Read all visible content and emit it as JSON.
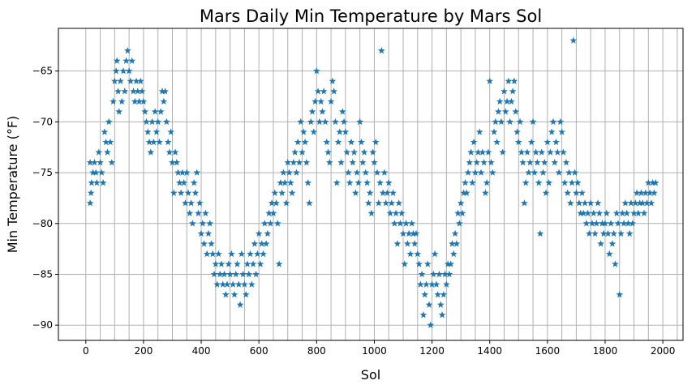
{
  "chart_data": {
    "type": "scatter",
    "title": "Mars Daily Min Temperature by Mars Sol",
    "xlabel": "Sol",
    "ylabel": "Min Temperature (°F)",
    "xlim": [
      -95,
      2070
    ],
    "ylim": [
      -91.5,
      -60.8
    ],
    "xticks": [
      0,
      200,
      400,
      600,
      800,
      1000,
      1200,
      1400,
      1600,
      1800,
      2000
    ],
    "yticks": [
      -90,
      -85,
      -80,
      -75,
      -70,
      -65
    ],
    "minor_x_gridlines_every": 50,
    "grid": true,
    "marker": "star",
    "color": "#1f77b4",
    "points": [
      [
        15,
        -74
      ],
      [
        20,
        -76
      ],
      [
        25,
        -75
      ],
      [
        15,
        -78
      ],
      [
        18,
        -77
      ],
      [
        30,
        -74
      ],
      [
        35,
        -75
      ],
      [
        38,
        -76
      ],
      [
        45,
        -73
      ],
      [
        50,
        -74
      ],
      [
        55,
        -75
      ],
      [
        60,
        -76
      ],
      [
        65,
        -71
      ],
      [
        70,
        -72
      ],
      [
        75,
        -73
      ],
      [
        80,
        -70
      ],
      [
        85,
        -72
      ],
      [
        90,
        -74
      ],
      [
        95,
        -68
      ],
      [
        100,
        -66
      ],
      [
        105,
        -65
      ],
      [
        108,
        -64
      ],
      [
        112,
        -67
      ],
      [
        115,
        -69
      ],
      [
        120,
        -66
      ],
      [
        125,
        -68
      ],
      [
        130,
        -65
      ],
      [
        135,
        -67
      ],
      [
        140,
        -64
      ],
      [
        145,
        -63
      ],
      [
        150,
        -65
      ],
      [
        155,
        -66
      ],
      [
        160,
        -64
      ],
      [
        165,
        -67
      ],
      [
        170,
        -68
      ],
      [
        175,
        -66
      ],
      [
        180,
        -67
      ],
      [
        185,
        -68
      ],
      [
        190,
        -66
      ],
      [
        195,
        -67
      ],
      [
        200,
        -68
      ],
      [
        205,
        -69
      ],
      [
        210,
        -70
      ],
      [
        215,
        -71
      ],
      [
        220,
        -72
      ],
      [
        225,
        -73
      ],
      [
        230,
        -70
      ],
      [
        235,
        -72
      ],
      [
        240,
        -69
      ],
      [
        245,
        -71
      ],
      [
        250,
        -70
      ],
      [
        255,
        -72
      ],
      [
        260,
        -69
      ],
      [
        265,
        -67
      ],
      [
        270,
        -68
      ],
      [
        275,
        -67
      ],
      [
        280,
        -70
      ],
      [
        285,
        -72
      ],
      [
        290,
        -73
      ],
      [
        295,
        -71
      ],
      [
        300,
        -74
      ],
      [
        305,
        -77
      ],
      [
        310,
        -73
      ],
      [
        315,
        -74
      ],
      [
        320,
        -75
      ],
      [
        325,
        -76
      ],
      [
        330,
        -77
      ],
      [
        335,
        -75
      ],
      [
        340,
        -76
      ],
      [
        345,
        -78
      ],
      [
        350,
        -75
      ],
      [
        355,
        -77
      ],
      [
        360,
        -79
      ],
      [
        365,
        -78
      ],
      [
        370,
        -80
      ],
      [
        375,
        -76
      ],
      [
        380,
        -77
      ],
      [
        385,
        -75
      ],
      [
        390,
        -79
      ],
      [
        395,
        -78
      ],
      [
        400,
        -81
      ],
      [
        405,
        -80
      ],
      [
        410,
        -82
      ],
      [
        415,
        -79
      ],
      [
        420,
        -83
      ],
      [
        425,
        -81
      ],
      [
        430,
        -80
      ],
      [
        435,
        -82
      ],
      [
        440,
        -83
      ],
      [
        445,
        -85
      ],
      [
        450,
        -84
      ],
      [
        455,
        -86
      ],
      [
        460,
        -83
      ],
      [
        465,
        -85
      ],
      [
        470,
        -84
      ],
      [
        475,
        -86
      ],
      [
        480,
        -85
      ],
      [
        485,
        -87
      ],
      [
        490,
        -86
      ],
      [
        495,
        -84
      ],
      [
        500,
        -85
      ],
      [
        505,
        -83
      ],
      [
        510,
        -86
      ],
      [
        515,
        -87
      ],
      [
        520,
        -85
      ],
      [
        525,
        -84
      ],
      [
        530,
        -86
      ],
      [
        535,
        -88
      ],
      [
        540,
        -83
      ],
      [
        545,
        -85
      ],
      [
        550,
        -86
      ],
      [
        555,
        -87
      ],
      [
        560,
        -84
      ],
      [
        565,
        -85
      ],
      [
        570,
        -83
      ],
      [
        575,
        -86
      ],
      [
        580,
        -84
      ],
      [
        585,
        -82
      ],
      [
        590,
        -85
      ],
      [
        595,
        -83
      ],
      [
        600,
        -81
      ],
      [
        605,
        -84
      ],
      [
        610,
        -82
      ],
      [
        615,
        -83
      ],
      [
        620,
        -80
      ],
      [
        625,
        -82
      ],
      [
        630,
        -81
      ],
      [
        635,
        -79
      ],
      [
        640,
        -80
      ],
      [
        645,
        -78
      ],
      [
        650,
        -79
      ],
      [
        655,
        -77
      ],
      [
        660,
        -78
      ],
      [
        665,
        -80
      ],
      [
        670,
        -84
      ],
      [
        675,
        -76
      ],
      [
        680,
        -77
      ],
      [
        685,
        -75
      ],
      [
        690,
        -76
      ],
      [
        695,
        -78
      ],
      [
        700,
        -74
      ],
      [
        705,
        -75
      ],
      [
        710,
        -76
      ],
      [
        715,
        -77
      ],
      [
        720,
        -74
      ],
      [
        725,
        -73
      ],
      [
        730,
        -75
      ],
      [
        735,
        -72
      ],
      [
        740,
        -74
      ],
      [
        745,
        -70
      ],
      [
        750,
        -73
      ],
      [
        755,
        -71
      ],
      [
        760,
        -72
      ],
      [
        765,
        -74
      ],
      [
        770,
        -76
      ],
      [
        775,
        -78
      ],
      [
        780,
        -70
      ],
      [
        785,
        -69
      ],
      [
        790,
        -71
      ],
      [
        795,
        -68
      ],
      [
        800,
        -65
      ],
      [
        805,
        -67
      ],
      [
        810,
        -70
      ],
      [
        815,
        -68
      ],
      [
        820,
        -69
      ],
      [
        825,
        -67
      ],
      [
        830,
        -70
      ],
      [
        835,
        -72
      ],
      [
        840,
        -73
      ],
      [
        845,
        -74
      ],
      [
        850,
        -68
      ],
      [
        855,
        -66
      ],
      [
        860,
        -67
      ],
      [
        865,
        -70
      ],
      [
        870,
        -76
      ],
      [
        875,
        -72
      ],
      [
        880,
        -71
      ],
      [
        885,
        -74
      ],
      [
        890,
        -69
      ],
      [
        895,
        -70
      ],
      [
        900,
        -71
      ],
      [
        905,
        -73
      ],
      [
        910,
        -75
      ],
      [
        915,
        -76
      ],
      [
        920,
        -72
      ],
      [
        925,
        -74
      ],
      [
        930,
        -73
      ],
      [
        935,
        -77
      ],
      [
        940,
        -75
      ],
      [
        945,
        -76
      ],
      [
        950,
        -70
      ],
      [
        955,
        -72
      ],
      [
        960,
        -74
      ],
      [
        965,
        -73
      ],
      [
        970,
        -75
      ],
      [
        975,
        -76
      ],
      [
        980,
        -78
      ],
      [
        985,
        -77
      ],
      [
        990,
        -79
      ],
      [
        995,
        -73
      ],
      [
        1000,
        -74
      ],
      [
        1005,
        -72
      ],
      [
        1010,
        -75
      ],
      [
        1015,
        -78
      ],
      [
        1020,
        -76
      ],
      [
        1025,
        -63
      ],
      [
        1030,
        -77
      ],
      [
        1035,
        -75
      ],
      [
        1040,
        -78
      ],
      [
        1045,
        -77
      ],
      [
        1050,
        -76
      ],
      [
        1055,
        -79
      ],
      [
        1060,
        -78
      ],
      [
        1065,
        -77
      ],
      [
        1070,
        -80
      ],
      [
        1075,
        -79
      ],
      [
        1080,
        -82
      ],
      [
        1085,
        -78
      ],
      [
        1090,
        -80
      ],
      [
        1095,
        -79
      ],
      [
        1100,
        -81
      ],
      [
        1105,
        -84
      ],
      [
        1110,
        -80
      ],
      [
        1115,
        -82
      ],
      [
        1120,
        -81
      ],
      [
        1125,
        -83
      ],
      [
        1130,
        -80
      ],
      [
        1135,
        -81
      ],
      [
        1140,
        -82
      ],
      [
        1145,
        -81
      ],
      [
        1150,
        -83
      ],
      [
        1155,
        -84
      ],
      [
        1160,
        -86
      ],
      [
        1165,
        -85
      ],
      [
        1170,
        -89
      ],
      [
        1175,
        -87
      ],
      [
        1180,
        -86
      ],
      [
        1185,
        -84
      ],
      [
        1190,
        -88
      ],
      [
        1195,
        -90
      ],
      [
        1200,
        -86
      ],
      [
        1205,
        -85
      ],
      [
        1210,
        -83
      ],
      [
        1215,
        -86
      ],
      [
        1220,
        -87
      ],
      [
        1225,
        -85
      ],
      [
        1230,
        -88
      ],
      [
        1235,
        -89
      ],
      [
        1240,
        -87
      ],
      [
        1245,
        -85
      ],
      [
        1250,
        -86
      ],
      [
        1255,
        -84
      ],
      [
        1260,
        -85
      ],
      [
        1265,
        -84
      ],
      [
        1270,
        -82
      ],
      [
        1275,
        -83
      ],
      [
        1280,
        -81
      ],
      [
        1285,
        -82
      ],
      [
        1290,
        -79
      ],
      [
        1295,
        -80
      ],
      [
        1300,
        -78
      ],
      [
        1305,
        -79
      ],
      [
        1310,
        -77
      ],
      [
        1315,
        -76
      ],
      [
        1320,
        -77
      ],
      [
        1325,
        -75
      ],
      [
        1330,
        -74
      ],
      [
        1335,
        -73
      ],
      [
        1340,
        -76
      ],
      [
        1345,
        -72
      ],
      [
        1350,
        -75
      ],
      [
        1355,
        -74
      ],
      [
        1360,
        -73
      ],
      [
        1365,
        -71
      ],
      [
        1370,
        -75
      ],
      [
        1375,
        -73
      ],
      [
        1380,
        -74
      ],
      [
        1385,
        -77
      ],
      [
        1390,
        -76
      ],
      [
        1395,
        -73
      ],
      [
        1400,
        -66
      ],
      [
        1405,
        -74
      ],
      [
        1410,
        -75
      ],
      [
        1415,
        -71
      ],
      [
        1420,
        -70
      ],
      [
        1425,
        -72
      ],
      [
        1430,
        -69
      ],
      [
        1435,
        -68
      ],
      [
        1440,
        -70
      ],
      [
        1445,
        -73
      ],
      [
        1450,
        -67
      ],
      [
        1455,
        -69
      ],
      [
        1460,
        -68
      ],
      [
        1465,
        -66
      ],
      [
        1470,
        -70
      ],
      [
        1475,
        -68
      ],
      [
        1480,
        -67
      ],
      [
        1485,
        -66
      ],
      [
        1490,
        -69
      ],
      [
        1495,
        -71
      ],
      [
        1500,
        -72
      ],
      [
        1505,
        -70
      ],
      [
        1510,
        -73
      ],
      [
        1515,
        -74
      ],
      [
        1520,
        -78
      ],
      [
        1525,
        -76
      ],
      [
        1530,
        -73
      ],
      [
        1535,
        -75
      ],
      [
        1540,
        -74
      ],
      [
        1545,
        -72
      ],
      [
        1550,
        -70
      ],
      [
        1555,
        -75
      ],
      [
        1560,
        -73
      ],
      [
        1565,
        -74
      ],
      [
        1570,
        -76
      ],
      [
        1575,
        -81
      ],
      [
        1580,
        -73
      ],
      [
        1585,
        -75
      ],
      [
        1590,
        -74
      ],
      [
        1595,
        -77
      ],
      [
        1600,
        -72
      ],
      [
        1605,
        -76
      ],
      [
        1610,
        -73
      ],
      [
        1615,
        -71
      ],
      [
        1620,
        -70
      ],
      [
        1625,
        -74
      ],
      [
        1630,
        -72
      ],
      [
        1635,
        -73
      ],
      [
        1640,
        -75
      ],
      [
        1645,
        -70
      ],
      [
        1650,
        -71
      ],
      [
        1655,
        -73
      ],
      [
        1660,
        -76
      ],
      [
        1665,
        -74
      ],
      [
        1670,
        -77
      ],
      [
        1675,
        -75
      ],
      [
        1680,
        -78
      ],
      [
        1685,
        -76
      ],
      [
        1690,
        -62
      ],
      [
        1695,
        -75
      ],
      [
        1700,
        -77
      ],
      [
        1705,
        -76
      ],
      [
        1710,
        -78
      ],
      [
        1715,
        -79
      ],
      [
        1720,
        -77
      ],
      [
        1725,
        -79
      ],
      [
        1730,
        -78
      ],
      [
        1735,
        -80
      ],
      [
        1740,
        -79
      ],
      [
        1745,
        -81
      ],
      [
        1750,
        -78
      ],
      [
        1755,
        -80
      ],
      [
        1760,
        -79
      ],
      [
        1765,
        -81
      ],
      [
        1770,
        -80
      ],
      [
        1775,
        -78
      ],
      [
        1780,
        -79
      ],
      [
        1785,
        -82
      ],
      [
        1790,
        -80
      ],
      [
        1795,
        -81
      ],
      [
        1800,
        -80
      ],
      [
        1805,
        -79
      ],
      [
        1810,
        -81
      ],
      [
        1815,
        -83
      ],
      [
        1820,
        -80
      ],
      [
        1825,
        -82
      ],
      [
        1830,
        -81
      ],
      [
        1835,
        -84
      ],
      [
        1840,
        -79
      ],
      [
        1845,
        -80
      ],
      [
        1850,
        -87
      ],
      [
        1855,
        -81
      ],
      [
        1860,
        -79
      ],
      [
        1865,
        -80
      ],
      [
        1870,
        -78
      ],
      [
        1875,
        -79
      ],
      [
        1880,
        -80
      ],
      [
        1885,
        -81
      ],
      [
        1890,
        -78
      ],
      [
        1895,
        -80
      ],
      [
        1900,
        -79
      ],
      [
        1905,
        -78
      ],
      [
        1910,
        -77
      ],
      [
        1915,
        -79
      ],
      [
        1920,
        -78
      ],
      [
        1925,
        -77
      ],
      [
        1930,
        -78
      ],
      [
        1935,
        -79
      ],
      [
        1940,
        -77
      ],
      [
        1945,
        -78
      ],
      [
        1950,
        -76
      ],
      [
        1955,
        -77
      ],
      [
        1960,
        -78
      ],
      [
        1965,
        -76
      ],
      [
        1970,
        -77
      ],
      [
        1975,
        -76
      ]
    ]
  }
}
